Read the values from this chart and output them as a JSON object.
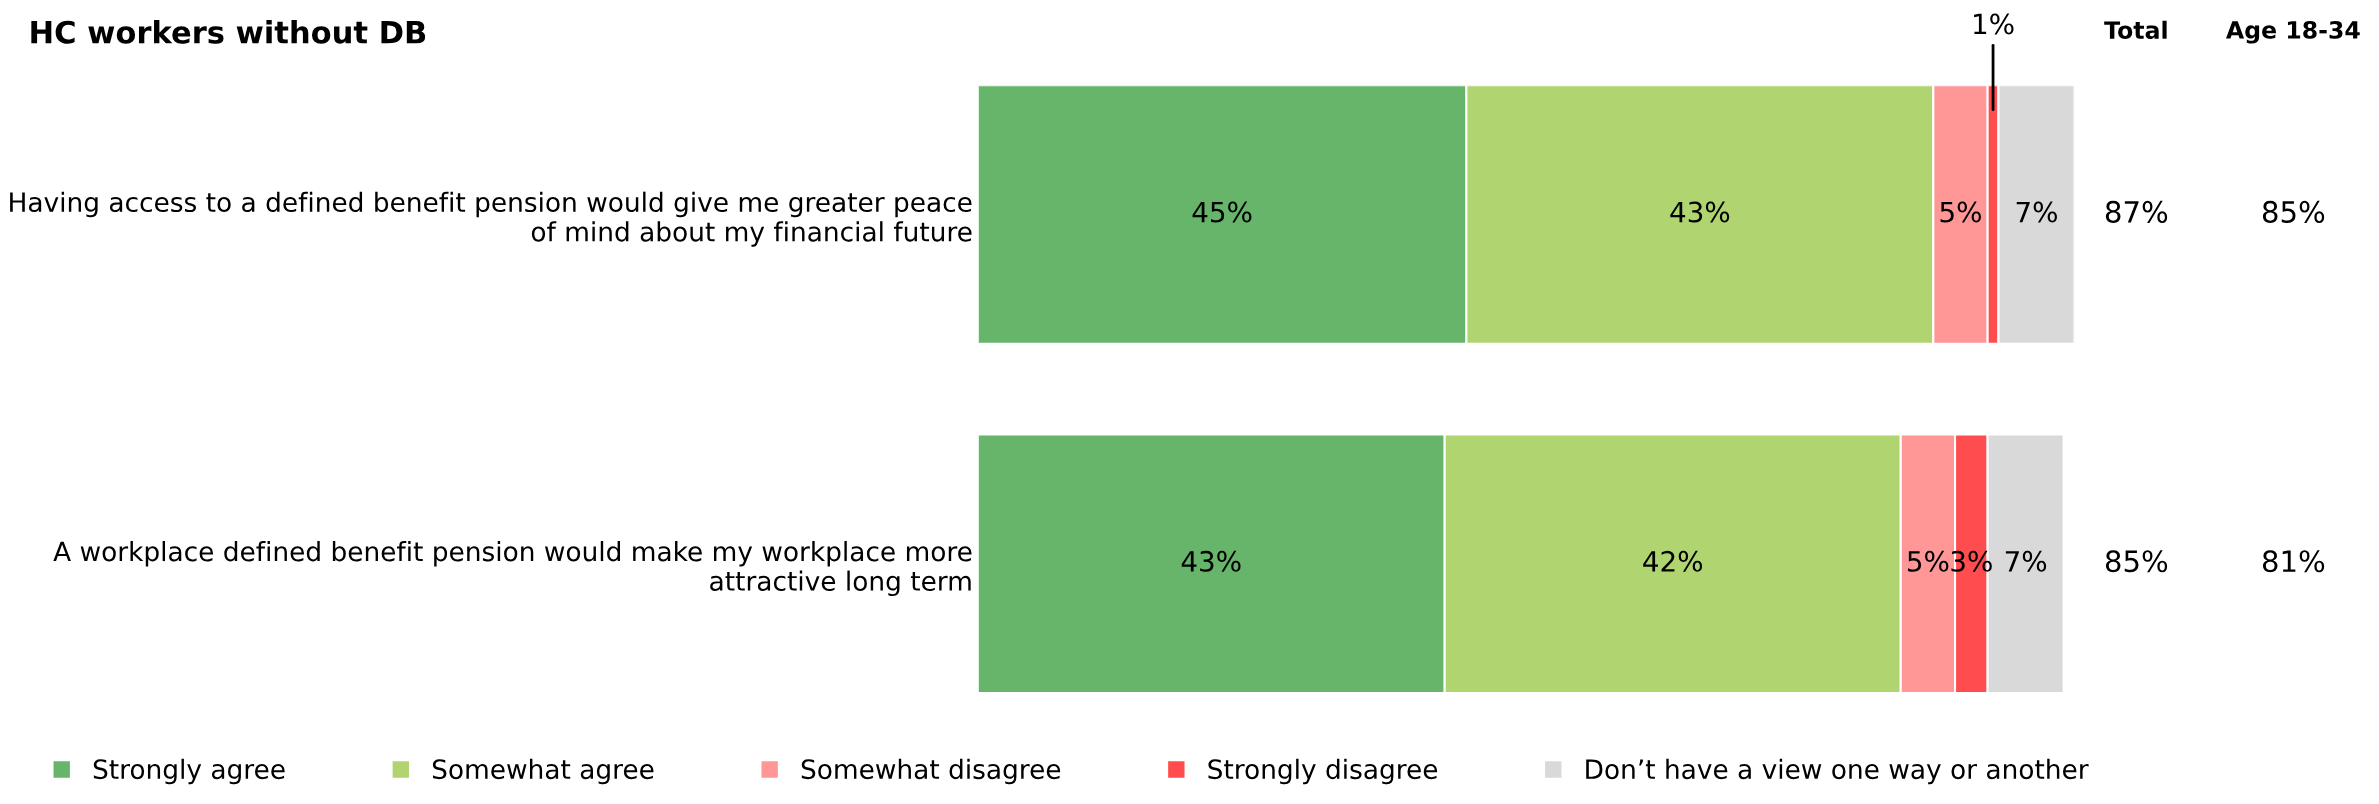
{
  "chart_data": {
    "type": "bar",
    "orientation": "horizontal",
    "stacked": true,
    "title": "HC workers without DB",
    "categories": [
      "Having access to a defined benefit pension would give me greater peace\nof mind about my financial future",
      "A workplace defined benefit pension would make my workplace more\nattractive long term"
    ],
    "series": [
      {
        "name": "Strongly agree",
        "color": "#66b56a",
        "values": [
          45,
          43
        ],
        "value_labels": [
          "45%",
          "43%"
        ]
      },
      {
        "name": "Somewhat agree",
        "color": "#b0d46f",
        "values": [
          43,
          42
        ],
        "value_labels": [
          "43%",
          "42%"
        ]
      },
      {
        "name": "Somewhat disagree",
        "color": "#ff9797",
        "values": [
          5,
          5
        ],
        "value_labels": [
          "5%",
          "5%"
        ]
      },
      {
        "name": "Strongly disagree",
        "color": "#ff4c4f",
        "values": [
          1,
          3
        ],
        "value_labels": [
          "1%",
          "3%"
        ]
      },
      {
        "name": "Don’t have a view one way or another",
        "color": "#d9d9d9",
        "values": [
          7,
          7
        ],
        "value_labels": [
          "7%",
          "7%"
        ]
      }
    ],
    "legend": "bottom",
    "grid": false,
    "tick_labels": "y",
    "annotations": [
      "Total",
      "87%",
      "85%",
      "Age 18-34",
      "85%",
      "81%"
    ]
  }
}
